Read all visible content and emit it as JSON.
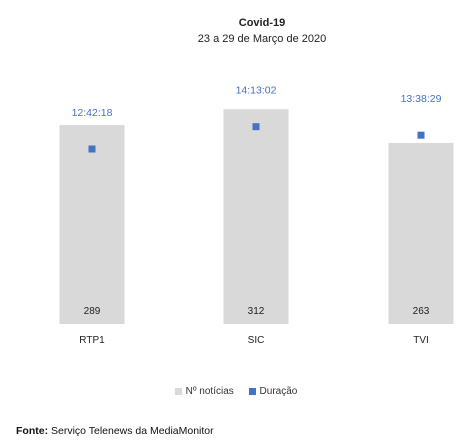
{
  "chart_data": {
    "type": "bar",
    "title": "Covid-19",
    "subtitle": "23 a 29 de Março de 2020",
    "categories": [
      "RTP1",
      "SIC",
      "TVI"
    ],
    "series": [
      {
        "name": "Nº notícias",
        "type": "bar",
        "color": "#d9d9d9",
        "values": [
          289,
          312,
          263
        ]
      },
      {
        "name": "Duração",
        "type": "scatter",
        "color": "#4472c4",
        "values": [
          "12:42:18",
          "14:13:02",
          "13:38:29"
        ],
        "values_seconds": [
          45738,
          51182,
          49109
        ]
      }
    ],
    "legend_position": "bottom",
    "duration_label_color": "#4472c4",
    "grid": false
  },
  "source": {
    "label": "Fonte:",
    "text": " Serviço Telenews da MediaMonitor"
  }
}
